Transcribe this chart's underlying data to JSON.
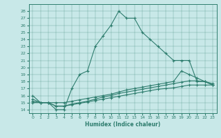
{
  "title": "",
  "xlabel": "Humidex (Indice chaleur)",
  "bg_color": "#c8e8e8",
  "line_color": "#2e7d6e",
  "xlim": [
    -0.5,
    23.5
  ],
  "ylim": [
    13.5,
    29
  ],
  "xticks": [
    0,
    1,
    2,
    3,
    4,
    5,
    6,
    7,
    8,
    9,
    10,
    11,
    12,
    13,
    14,
    15,
    16,
    17,
    18,
    19,
    20,
    21,
    22,
    23
  ],
  "yticks": [
    14,
    15,
    16,
    17,
    18,
    19,
    20,
    21,
    22,
    23,
    24,
    25,
    26,
    27,
    28
  ],
  "line1_x": [
    0,
    1,
    2,
    3,
    4,
    5,
    6,
    7,
    8,
    9,
    10,
    11,
    12,
    13,
    14,
    15,
    16,
    17,
    18,
    19,
    20,
    21,
    22,
    23
  ],
  "line1_y": [
    16,
    15,
    15,
    14,
    14,
    17,
    19,
    19.5,
    23,
    24.5,
    26,
    28,
    27,
    27,
    25,
    24,
    23,
    22,
    21,
    21,
    21,
    18,
    18,
    17.5
  ],
  "line2_x": [
    0,
    1,
    2,
    3,
    4,
    5,
    6,
    7,
    8,
    9,
    10,
    11,
    12,
    13,
    14,
    15,
    16,
    17,
    18,
    19,
    20,
    21,
    22,
    23
  ],
  "line2_y": [
    15.5,
    15,
    15,
    15,
    15,
    15.2,
    15.4,
    15.6,
    15.8,
    16,
    16.2,
    16.5,
    16.8,
    17.0,
    17.2,
    17.4,
    17.6,
    17.8,
    18.0,
    19.5,
    19.0,
    18.5,
    18.0,
    17.5
  ],
  "line3_x": [
    0,
    1,
    2,
    3,
    4,
    5,
    6,
    7,
    8,
    9,
    10,
    11,
    12,
    13,
    14,
    15,
    16,
    17,
    18,
    19,
    20,
    21,
    22,
    23
  ],
  "line3_y": [
    15.2,
    15,
    15,
    14.5,
    14.5,
    14.8,
    15.0,
    15.2,
    15.5,
    15.8,
    16.0,
    16.3,
    16.5,
    16.7,
    16.9,
    17.1,
    17.3,
    17.5,
    17.7,
    17.9,
    18.1,
    18.1,
    18.0,
    17.7
  ],
  "line4_x": [
    0,
    1,
    2,
    3,
    4,
    5,
    6,
    7,
    8,
    9,
    10,
    11,
    12,
    13,
    14,
    15,
    16,
    17,
    18,
    19,
    20,
    21,
    22,
    23
  ],
  "line4_y": [
    15.0,
    15,
    15,
    14.5,
    14.5,
    14.7,
    14.9,
    15.1,
    15.3,
    15.5,
    15.7,
    15.9,
    16.1,
    16.3,
    16.5,
    16.7,
    16.9,
    17.0,
    17.1,
    17.3,
    17.5,
    17.5,
    17.5,
    17.5
  ]
}
